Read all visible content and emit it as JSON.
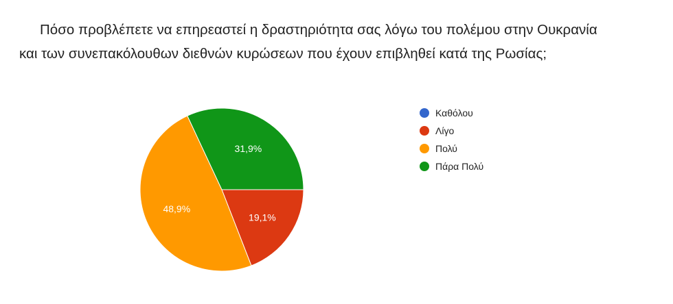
{
  "title": {
    "line1": "Πόσο προβλέπετε να επηρεαστεί η δραστηριότητα σας λόγω του πολέμου στην Ουκρανία",
    "line2": "και των συνεπακόλουθων διεθνών κυρώσεων που έχουν επιβληθεί κατά της Ρωσίας;"
  },
  "chart_data": {
    "type": "pie",
    "title": "Πόσο προβλέπετε να επηρεαστεί η δραστηριότητα σας λόγω του πολέμου στην Ουκρανία και των συνεπακόλουθων διεθνών κυρώσεων που έχουν επιβληθεί κατά της Ρωσίας;",
    "legend_position": "right",
    "slices": [
      {
        "name": "Καθόλου",
        "value": 0,
        "label": "",
        "color": "#3366cc"
      },
      {
        "name": "Λίγο",
        "value": 19.1,
        "label": "19,1%",
        "color": "#dc3912"
      },
      {
        "name": "Πολύ",
        "value": 48.9,
        "label": "48,9%",
        "color": "#ff9900"
      },
      {
        "name": "Πάρα Πολύ",
        "value": 31.9,
        "label": "31,9%",
        "color": "#109618"
      }
    ]
  }
}
